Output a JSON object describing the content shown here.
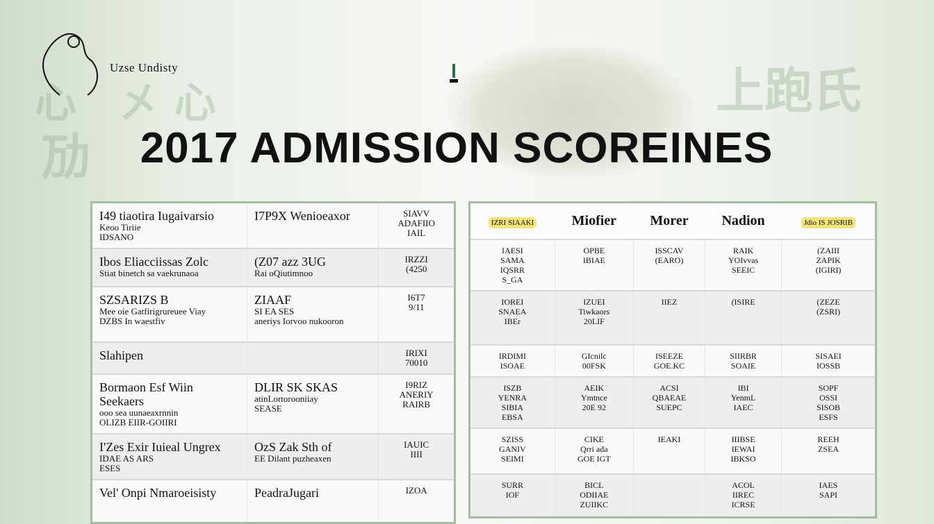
{
  "header": {
    "logo_text": "Uzse Undisty",
    "title": "2017 ADMISSION SCOREINES"
  },
  "left_table": {
    "rows": [
      {
        "c1": [
          "I49 tiaotira Iugaivarsio",
          "Keoo Tiriie",
          "IDSANO"
        ],
        "c2": [
          "I7P9X Wenioeaxor"
        ],
        "c3": [
          "SIAVV",
          "ADAFIIO",
          "IAIL"
        ]
      },
      {
        "c1": [
          "Ibos Eliacciissas Zolc",
          "Stiat binetch sa vaekrunaoa"
        ],
        "c2": [
          "(Z07 azz 3UG",
          "Rai oQiutimnoo"
        ],
        "c3": [
          "IRZZI",
          "(4250"
        ]
      },
      {
        "c1": [
          "SZSARIZS   B",
          "Mee oie Gatfirigrureuee Viay",
          "DZBS In waestfiv"
        ],
        "c2": [
          "ZIAAF",
          "SI EA SES",
          "aneriys Iorvoo nukooron"
        ],
        "c3": [
          "I6T7",
          "9/11"
        ]
      },
      {
        "c1": [
          "Slahipen"
        ],
        "c2": [
          ""
        ],
        "c3": [
          "IRIXI",
          "70010"
        ]
      },
      {
        "c1": [
          "Bormaon Esf Wiin Seekaers",
          "ooo sea uunaeaxrnnin",
          "OLIZB EIIR-GOIIRI"
        ],
        "c2": [
          "DLIR SK SKAS",
          "atinLortorooniiay",
          "SEASE"
        ],
        "c3": [
          "I9RIZ",
          "ANERIY",
          "RAIRB"
        ]
      },
      {
        "c1": [
          "I'Zes Exir Iuieal Ungrex",
          "IDAE AS ARS",
          "ESES"
        ],
        "c2": [
          "OzS Zak Sth of",
          "EE Dilant puzheaxen"
        ],
        "c3": [
          "IAUIC",
          "IIII"
        ]
      },
      {
        "c1": [
          "Vel' Onpi Nmaroeisisty"
        ],
        "c2": [
          "PeadraJugari"
        ],
        "c3": [
          "IZOA"
        ]
      }
    ]
  },
  "right_table": {
    "headers": [
      "IZRI SIAAKI",
      "Miofier",
      "Morer",
      "Nadion",
      "Jdio IS JOSRIB"
    ],
    "highlight_color": "#f1e27a",
    "rows": [
      [
        [
          "IAESI",
          "SAMA",
          "IQSRR",
          "S_GA"
        ],
        [
          "OPBE",
          "IBIAE"
        ],
        [
          "ISSCAV",
          "(EARO)"
        ],
        [
          "RAIK",
          "YOIvvas",
          "SEEIC"
        ],
        [
          "(ZAIII",
          "ZAPIK",
          "(IGIRI)"
        ]
      ],
      [
        [
          "IOREI",
          "SNAEA",
          "IBEr"
        ],
        [
          "IZUEI",
          "Tiwkaors",
          "20LIF"
        ],
        [
          "IIEZ"
        ],
        [
          "(ISIRE"
        ],
        [
          "(ZEZE",
          "(ZSRI)"
        ]
      ],
      [
        [
          "IRDIMI",
          "ISOAE"
        ],
        [
          "GIcnilc",
          "00FSK"
        ],
        [
          "ISEEZE",
          "GOE.KC"
        ],
        [
          "SIIRBR",
          "SOAIE"
        ],
        [
          "SISAEI",
          "IOSSB"
        ]
      ],
      [
        [
          "ISZB",
          "YENRA",
          "SIBIA",
          "EBSA"
        ],
        [
          "AEIK",
          "Ymtnce",
          "20E 92"
        ],
        [
          "ACSI",
          "QBAEAE",
          "SUEPC"
        ],
        [
          "IBI",
          "YenmL",
          "IAEC"
        ],
        [
          "SOPF",
          "OSSI",
          "SISOB",
          "ESFS"
        ]
      ],
      [
        [
          "SZISS",
          "GANIV",
          "SEIMI"
        ],
        [
          "CIKE",
          "Qrri ada",
          "GOE IGT"
        ],
        [
          "IEAKI"
        ],
        [
          "IIIBSE",
          "IEWAI",
          "IBKSO"
        ],
        [
          "REEH",
          "ZSEA"
        ]
      ],
      [
        [
          "SURR",
          "IOF"
        ],
        [
          "BICL",
          "ODIIAE",
          "ZUIIKC"
        ],
        [
          ""
        ],
        [
          "ACOL",
          "IIREC",
          "ICRSE"
        ],
        [
          "IAES",
          "SAPI"
        ]
      ]
    ]
  }
}
